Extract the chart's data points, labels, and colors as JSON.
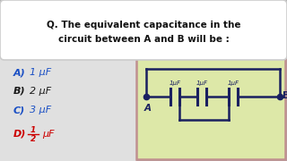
{
  "title_line1": "Q. The equivalent capacitance in the",
  "title_line2": "circuit between A and B will be :",
  "options": [
    {
      "label": "A)",
      "value": "1 μF",
      "color": "#1a4fc4"
    },
    {
      "label": "B)",
      "value": "2 μF",
      "color": "#1a1a1a"
    },
    {
      "label": "C)",
      "value": "3 μF",
      "color": "#1a4fc4"
    },
    {
      "label": "D)",
      "color": "#cc0000"
    }
  ],
  "bg_color": "#b0b0b0",
  "header_bg": "#ffffff",
  "left_panel_bg": "#e0e0e0",
  "circuit_bg": "#dde8a8",
  "circuit_border": "#c09090",
  "cap_labels": [
    "1μF",
    "1μF",
    "1μF"
  ],
  "node_A": "A",
  "node_B": "B",
  "wire_color": "#1a2060",
  "text_color": "#111111"
}
